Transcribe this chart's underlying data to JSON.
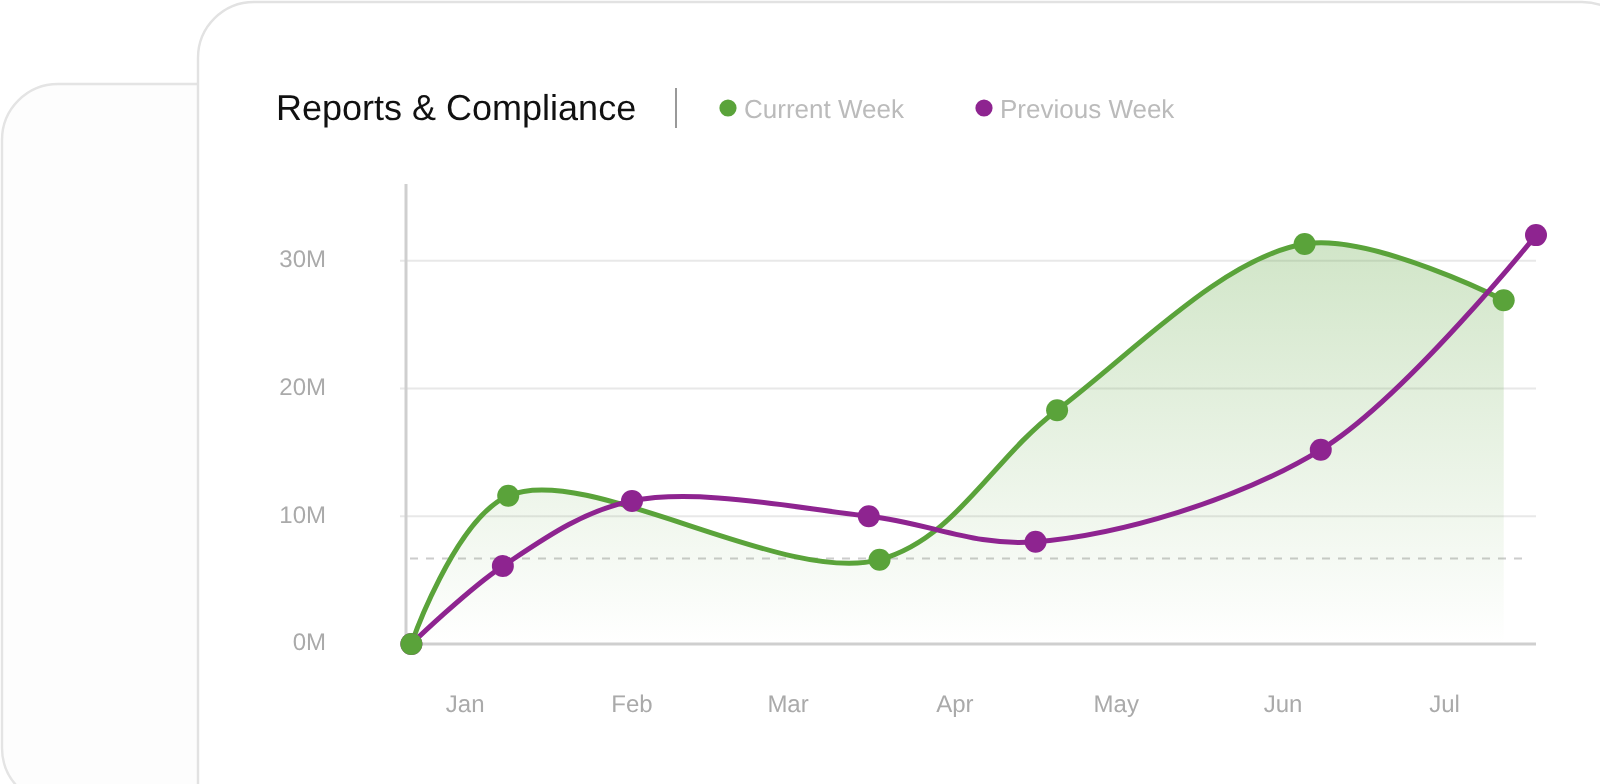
{
  "chart_data": {
    "type": "line",
    "title": "Reports & Compliance",
    "legend": "top",
    "grid": "y",
    "marker": "circle",
    "xlim": [
      "--01-04",
      "--08-02"
    ],
    "xticks": [
      {
        "value": "--01-15",
        "label": "Jan"
      },
      {
        "value": "--02-15",
        "label": "Feb"
      },
      {
        "value": "--03-16",
        "label": "Mar"
      },
      {
        "value": "--04-16",
        "label": "Apr"
      },
      {
        "value": "--05-16",
        "label": "May"
      },
      {
        "value": "--06-16",
        "label": "Jun"
      },
      {
        "value": "--07-16",
        "label": "Jul"
      }
    ],
    "ylim": [
      0,
      36
    ],
    "yticks": [
      {
        "value": 0,
        "label": "0M"
      },
      {
        "value": 10,
        "label": "10M"
      },
      {
        "value": 20,
        "label": "20M"
      },
      {
        "value": 30,
        "label": "30M"
      }
    ],
    "ref_lines": [
      {
        "axis": "y",
        "value": 6.7,
        "line_style": "dashed",
        "color": "#cccccc"
      }
    ],
    "series": [
      {
        "name": "Current Week",
        "type": "area",
        "color": "#5aa33a",
        "x": [
          "--01-05",
          "--01-23",
          "--04-02",
          "--05-05",
          "--06-20",
          "--07-27"
        ],
        "values": [
          0,
          11.6,
          6.6,
          18.3,
          31.3,
          26.9
        ]
      },
      {
        "name": "Previous Week",
        "type": "line",
        "color": "#8e2490",
        "x": [
          "--01-05",
          "--01-22",
          "--02-15",
          "--03-31",
          "--05-01",
          "--06-23",
          "--08-02"
        ],
        "values": [
          0,
          6.1,
          11.2,
          10,
          8,
          15.2,
          32
        ]
      }
    ]
  }
}
